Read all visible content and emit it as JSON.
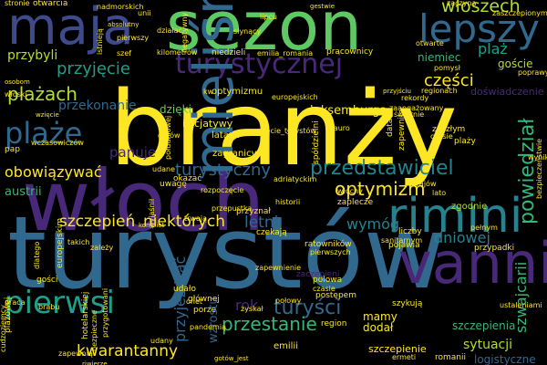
{
  "words": [
    {
      "text": "turystów",
      "color": "#31688e"
    },
    {
      "text": "branży",
      "color": "#fde725"
    },
    {
      "text": "włoch",
      "color": "#482979"
    },
    {
      "text": "sezon",
      "color": "#5ec962"
    },
    {
      "text": "maja",
      "color": "#3e4a89"
    },
    {
      "text": "vanni",
      "color": "#482979"
    },
    {
      "text": "rimini",
      "color": "#26828e"
    },
    {
      "text": "turystycznej",
      "color": "#482979"
    },
    {
      "text": "lepszy",
      "color": "#31688e"
    },
    {
      "text": "pierwsi",
      "color": "#1f9e89"
    },
    {
      "text": "plaże",
      "color": "#31688e"
    },
    {
      "text": "włoszech",
      "color": "#b5de2b"
    },
    {
      "text": "przedstawiciel",
      "color": "#26828e"
    },
    {
      "text": "turyści",
      "color": "#31688e"
    },
    {
      "text": "przestanie",
      "color": "#35b779"
    },
    {
      "text": "turystyczny",
      "color": "#31688e"
    },
    {
      "text": "plażach",
      "color": "#b5de2b"
    },
    {
      "text": "przyjęcie",
      "color": "#1f9e89"
    },
    {
      "text": "mieliśmy",
      "color": "#31688e"
    },
    {
      "text": "kwarantanny",
      "color": "#fde725"
    },
    {
      "text": "powiedział",
      "color": "#35b779"
    },
    {
      "text": "optymizm",
      "color": "#fde725"
    },
    {
      "text": "szczepień",
      "color": "#fde725"
    },
    {
      "text": "niektórych",
      "color": "#fde725"
    },
    {
      "text": "letni",
      "color": "#31688e"
    },
    {
      "text": "dniowej",
      "color": "#26828e"
    },
    {
      "text": "wymóg",
      "color": "#26828e"
    },
    {
      "text": "obowiązywać",
      "color": "#fde725"
    },
    {
      "text": "panuje",
      "color": "#482979"
    },
    {
      "text": "części",
      "color": "#fde725"
    },
    {
      "text": "szwajcarii",
      "color": "#35b779"
    },
    {
      "text": "sytuacji",
      "color": "#b5de2b"
    },
    {
      "text": "przybyli",
      "color": "#b5de2b"
    },
    {
      "text": "przekonanie",
      "color": "#31688e"
    },
    {
      "text": "luksemburga",
      "color": "#fde725"
    },
    {
      "text": "dzięki",
      "color": "#5ec962"
    },
    {
      "text": "przyjeżdżać",
      "color": "#31688e"
    },
    {
      "text": "niemiec",
      "color": "#35b779"
    },
    {
      "text": "goście",
      "color": "#b5de2b"
    },
    {
      "text": "plaż",
      "color": "#1f9e89"
    },
    {
      "text": "austrii",
      "color": "#35b779"
    },
    {
      "text": "wzrostu",
      "color": "#31688e"
    },
    {
      "text": "doświadczenie",
      "color": "#482979"
    },
    {
      "text": "mamy",
      "color": "#fde725"
    },
    {
      "text": "dodał",
      "color": "#fde725"
    },
    {
      "text": "logistyczne",
      "color": "#31688e"
    },
    {
      "text": "szczepienia",
      "color": "#35b779"
    },
    {
      "text": "szczepienie",
      "color": "#fde725"
    },
    {
      "text": "zgodnie",
      "color": "#b5de2b"
    },
    {
      "text": "emilii",
      "color": "#fde725"
    },
    {
      "text": "optymizmu",
      "color": "#fde725"
    },
    {
      "text": "inicjatywy",
      "color": "#fde725"
    },
    {
      "text": "latach",
      "color": "#fde725"
    },
    {
      "text": "zagranicy",
      "color": "#fde725"
    },
    {
      "text": "zaczyna",
      "color": "#fde725"
    },
    {
      "text": "zaszczepionym",
      "color": "#fde725"
    },
    {
      "text": "adriatyckim",
      "color": "#fde725"
    },
    {
      "text": "emilia_romania",
      "color": "#fde725"
    },
    {
      "text": "pracownicy",
      "color": "#fde725"
    },
    {
      "text": "niedzieli",
      "color": "#fde725"
    },
    {
      "text": "kilometrów",
      "color": "#fde725"
    },
    {
      "text": "lipcu",
      "color": "#fde725"
    },
    {
      "text": "słynący",
      "color": "#fde725"
    },
    {
      "text": "otwarte",
      "color": "#fde725"
    },
    {
      "text": "szef",
      "color": "#fde725"
    },
    {
      "text": "stronie",
      "color": "#fde725"
    },
    {
      "text": "otwarcia",
      "color": "#fde725"
    },
    {
      "text": "nadmorskich",
      "color": "#fde725"
    },
    {
      "text": "unii",
      "color": "#fde725"
    },
    {
      "text": "istnieją",
      "color": "#fde725"
    },
    {
      "text": "południowej",
      "color": "#fde725"
    },
    {
      "text": "gotów",
      "color": "#fde725"
    },
    {
      "text": "kw",
      "color": "#fde725"
    },
    {
      "text": "mauro",
      "color": "#fde725"
    },
    {
      "text": "zaangażowany",
      "color": "#fde725"
    },
    {
      "text": "wspólnego",
      "color": "#fde725"
    },
    {
      "text": "świetnie",
      "color": "#fde725"
    },
    {
      "text": "zeszłym",
      "color": "#fde725"
    },
    {
      "text": "plaży",
      "color": "#fde725"
    },
    {
      "text": "czasie",
      "color": "#fde725"
    },
    {
      "text": "krajów",
      "color": "#fde725"
    },
    {
      "text": "lato",
      "color": "#fde725"
    },
    {
      "text": "włochy",
      "color": "#fde725"
    },
    {
      "text": "zaplecze",
      "color": "#fde725"
    },
    {
      "text": "liczby",
      "color": "#fde725"
    },
    {
      "text": "sanitarnym",
      "color": "#fde725"
    },
    {
      "text": "pełnym",
      "color": "#fde725"
    },
    {
      "text": "ratowników",
      "color": "#fde725"
    },
    {
      "text": "pierwszych",
      "color": "#fde725"
    },
    {
      "text": "czekają",
      "color": "#fde725"
    },
    {
      "text": "przyznał",
      "color": "#fde725"
    },
    {
      "text": "historii",
      "color": "#fde725"
    },
    {
      "text": "przepustka",
      "color": "#fde725"
    },
    {
      "text": "trwają",
      "color": "#fde725"
    },
    {
      "text": "kompiet",
      "color": "#fde725"
    },
    {
      "text": "takich",
      "color": "#fde725"
    },
    {
      "text": "wczasowiczów",
      "color": "#fde725"
    },
    {
      "text": "pap",
      "color": "#fde725"
    },
    {
      "text": "uwagę",
      "color": "#fde725"
    },
    {
      "text": "okazać",
      "color": "#fde725"
    },
    {
      "text": "udane",
      "color": "#fde725"
    },
    {
      "text": "wyjaśnił",
      "color": "#fde725"
    },
    {
      "text": "włoski",
      "color": "#fde725"
    },
    {
      "text": "osobom",
      "color": "#fde725"
    },
    {
      "text": "wzięcie",
      "color": "#fde725"
    },
    {
      "text": "pomysł",
      "color": "#fde725"
    },
    {
      "text": "regionach",
      "color": "#fde725"
    },
    {
      "text": "przyjściu",
      "color": "#fde725"
    },
    {
      "text": "poprawy",
      "color": "#fde725"
    },
    {
      "text": "rok",
      "color": "#fde725"
    },
    {
      "text": "postępem",
      "color": "#fde725"
    },
    {
      "text": "połowy",
      "color": "#fde725"
    },
    {
      "text": "region",
      "color": "#fde725"
    },
    {
      "text": "porze",
      "color": "#fde725"
    },
    {
      "text": "głównej",
      "color": "#fde725"
    },
    {
      "text": "udało",
      "color": "#fde725"
    },
    {
      "text": "onet",
      "color": "#fde725"
    },
    {
      "text": "polowa",
      "color": "#fde725"
    },
    {
      "text": "czasie",
      "color": "#fde725"
    },
    {
      "text": "romanii",
      "color": "#fde725"
    },
    {
      "text": "ermeti",
      "color": "#fde725"
    },
    {
      "text": "pojawia",
      "color": "#fde725"
    },
    {
      "text": "przypadki",
      "color": "#fde725"
    },
    {
      "text": "szykują",
      "color": "#fde725"
    },
    {
      "text": "zaczepieni",
      "color": "#fde725"
    },
    {
      "text": "hotelarskiej",
      "color": "#fde725"
    },
    {
      "text": "bezpieczne",
      "color": "#fde725"
    },
    {
      "text": "europejskim",
      "color": "#fde725"
    },
    {
      "text": "przygotowani",
      "color": "#fde725"
    },
    {
      "text": "cudzoziemcy",
      "color": "#fde725"
    },
    {
      "text": "brabu",
      "color": "#fde725"
    },
    {
      "text": "praca",
      "color": "#fde725"
    },
    {
      "text": "gości",
      "color": "#fde725"
    },
    {
      "text": "plażowej",
      "color": "#fde725"
    },
    {
      "text": "pandemią",
      "color": "#fde725"
    },
    {
      "text": "dlatego",
      "color": "#fde725"
    },
    {
      "text": "zapewnią",
      "color": "#fde725"
    },
    {
      "text": "riwierze",
      "color": "#fde725"
    },
    {
      "text": "udany",
      "color": "#fde725"
    },
    {
      "text": "ustaleniami",
      "color": "#fde725"
    },
    {
      "text": "spółdzielni",
      "color": "#fde725"
    },
    {
      "text": "zapewniła",
      "color": "#fde725"
    },
    {
      "text": "wynik",
      "color": "#fde725"
    },
    {
      "text": "negatywny",
      "color": "#fde725"
    },
    {
      "text": "działać",
      "color": "#fde725"
    },
    {
      "text": "data",
      "color": "#fde725"
    },
    {
      "text": "minie",
      "color": "#fde725"
    },
    {
      "text": "bezpieczeństwie",
      "color": "#fde725"
    },
    {
      "text": "absolutny",
      "color": "#fde725"
    },
    {
      "text": "pierwszy",
      "color": "#fde725"
    },
    {
      "text": "zyskał",
      "color": "#fde725"
    },
    {
      "text": "zależy",
      "color": "#fde725"
    },
    {
      "text": "europejskich",
      "color": "#fde725"
    },
    {
      "text": "gestwie",
      "color": "#fde725"
    },
    {
      "text": "rekordy",
      "color": "#fde725"
    },
    {
      "text": "zapewnienie",
      "color": "#fde725"
    },
    {
      "text": "rozpoczęcie",
      "color": "#fde725"
    },
    {
      "text": "przyjęcie_turystów",
      "color": "#fde725"
    },
    {
      "text": "gotów_jest",
      "color": "#fde725"
    },
    {
      "text": "zanim",
      "color": "#fde725"
    }
  ]
}
